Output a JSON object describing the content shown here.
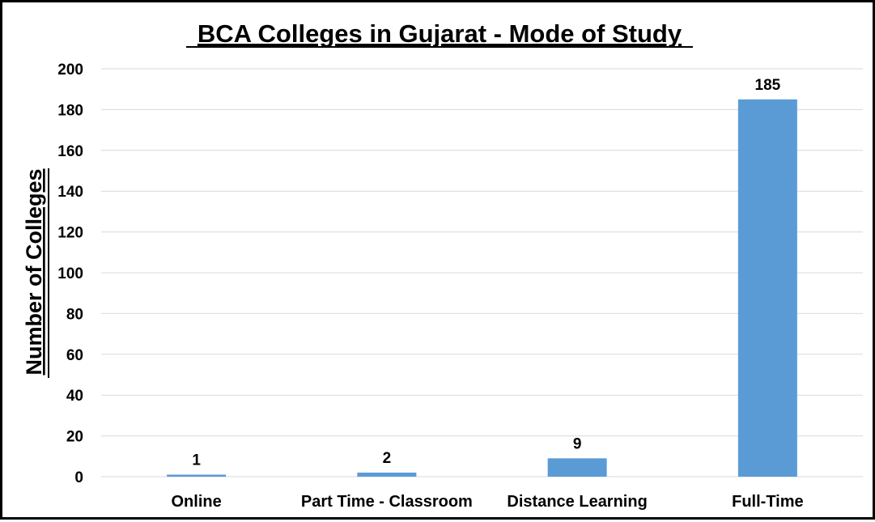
{
  "chart_data": {
    "type": "bar",
    "title": "BCA Colleges in Gujarat - Mode of Study",
    "ylabel": "Number of Colleges",
    "xlabel": "",
    "categories": [
      "Online",
      "Part Time - Classroom",
      "Distance Learning",
      "Full-Time"
    ],
    "values": [
      1,
      2,
      9,
      185
    ],
    "data_labels": [
      "1",
      "2",
      "9",
      "185"
    ],
    "ylim": [
      0,
      200
    ],
    "yticks": [
      0,
      20,
      40,
      60,
      80,
      100,
      120,
      140,
      160,
      180,
      200
    ],
    "ytick_labels": [
      "0",
      "20",
      "40",
      "60",
      "80",
      "100",
      "120",
      "140",
      "160",
      "180",
      "200"
    ],
    "grid": true,
    "legend": "none",
    "bar_color": "#5b9bd5",
    "grid_color": "#d9d9d9"
  }
}
